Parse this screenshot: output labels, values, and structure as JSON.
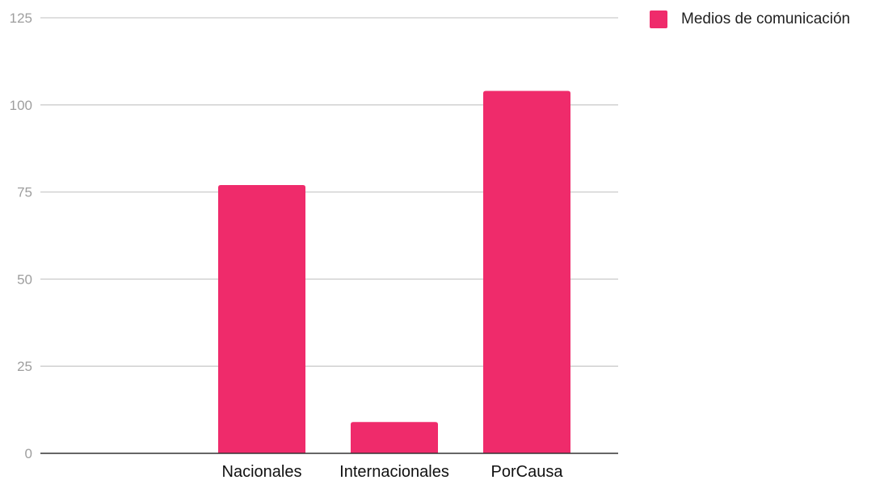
{
  "chart_data": {
    "type": "bar",
    "categories": [
      "",
      "Nacionales",
      "Internacionales",
      "PorCausa"
    ],
    "series": [
      {
        "name": "Medios de comunicación",
        "values": [
          0,
          77,
          9,
          104
        ],
        "color": "#ef2b6b"
      }
    ],
    "title": "",
    "xlabel": "",
    "ylabel": "",
    "ylim": [
      0,
      125
    ],
    "yticks": [
      "0",
      "25",
      "50",
      "75",
      "100",
      "125"
    ],
    "grid": true,
    "legend_position": "top-right",
    "gridline_color": "#cccccc",
    "axis_color": "#333333"
  }
}
